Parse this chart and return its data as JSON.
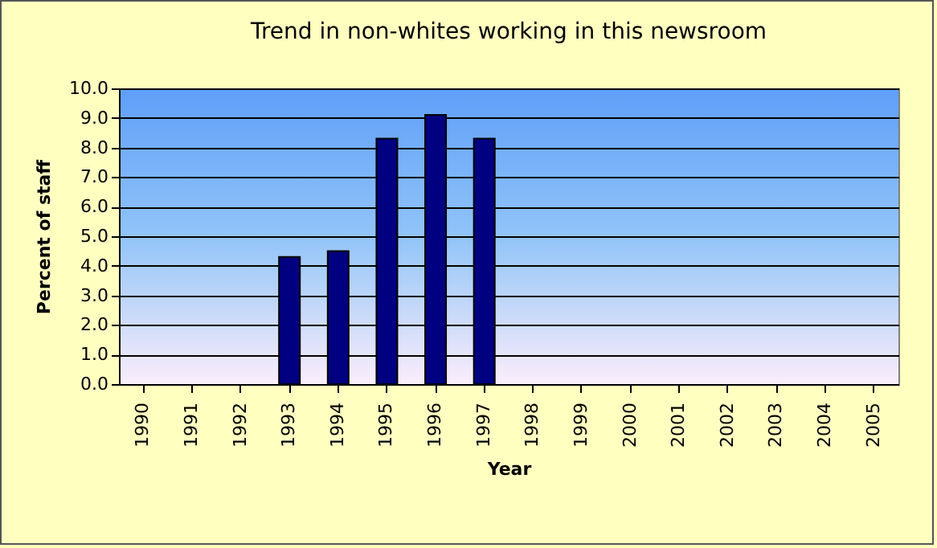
{
  "chart_data": {
    "type": "bar",
    "title": "Trend in non-whites working in this newsroom",
    "xlabel": "Year",
    "ylabel": "Percent of staff",
    "categories": [
      "1990",
      "1991",
      "1992",
      "1993",
      "1994",
      "1995",
      "1996",
      "1997",
      "1998",
      "1999",
      "2000",
      "2001",
      "2002",
      "2003",
      "2004",
      "2005"
    ],
    "values": [
      null,
      null,
      null,
      4.3,
      4.5,
      8.3,
      9.1,
      8.3,
      null,
      null,
      null,
      null,
      null,
      null,
      null,
      null
    ],
    "color": "#000080",
    "ylim": [
      0,
      10
    ],
    "yticks": [
      {
        "value": 0,
        "label": "0.0"
      },
      {
        "value": 1,
        "label": "1.0"
      },
      {
        "value": 2,
        "label": "2.0"
      },
      {
        "value": 3,
        "label": "3.0"
      },
      {
        "value": 4,
        "label": "4.0"
      },
      {
        "value": 5,
        "label": "5.0"
      },
      {
        "value": 6,
        "label": "6.0"
      },
      {
        "value": 7,
        "label": "7.0"
      },
      {
        "value": 8,
        "label": "8.0"
      },
      {
        "value": 9,
        "label": "9.0"
      },
      {
        "value": 10,
        "label": "10.0"
      }
    ],
    "grid": "y",
    "legend": false
  }
}
